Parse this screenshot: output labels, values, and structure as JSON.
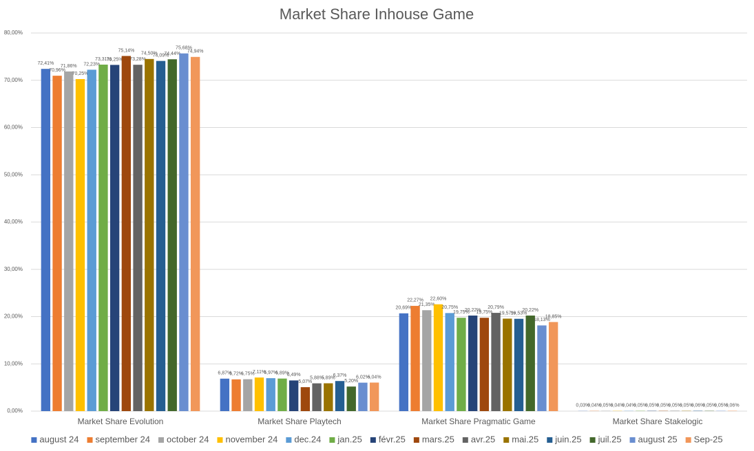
{
  "chart_data": {
    "type": "bar",
    "title": "Market Share Inhouse Game",
    "categories": [
      "Market Share Evolution",
      "Market Share Playtech",
      "Market Share Pragmatic Game",
      "Market Share  Stakelogic"
    ],
    "ylim": [
      0,
      80
    ],
    "yticks": [
      {
        "value": 0,
        "label": "0,00%"
      },
      {
        "value": 10,
        "label": "10,00%"
      },
      {
        "value": 20,
        "label": "20,00%"
      },
      {
        "value": 30,
        "label": "30,00%"
      },
      {
        "value": 40,
        "label": "40,00%"
      },
      {
        "value": 50,
        "label": "50,00%"
      },
      {
        "value": 60,
        "label": "60,00%"
      },
      {
        "value": 70,
        "label": "70,00%"
      },
      {
        "value": 80,
        "label": "80,00%"
      }
    ],
    "grid": true,
    "legend": "bottom",
    "series": [
      {
        "name": "august 24",
        "color": "#4472c4",
        "values": [
          72.41,
          6.87,
          20.69,
          0.03
        ],
        "value_labels": [
          "72,41%",
          "6,87%",
          "20,69%",
          "0,03%"
        ]
      },
      {
        "name": "september 24",
        "color": "#ed7d31",
        "values": [
          70.96,
          6.72,
          22.27,
          0.04
        ],
        "value_labels": [
          "70,96%",
          "6,72%",
          "22,27%",
          "0,04%"
        ]
      },
      {
        "name": "october 24",
        "color": "#a5a5a5",
        "values": [
          71.86,
          6.75,
          21.35,
          0.05
        ],
        "value_labels": [
          "71,86%",
          "6,75%",
          "21,35%",
          "0,05%"
        ]
      },
      {
        "name": "november 24",
        "color": "#ffc000",
        "values": [
          70.25,
          7.11,
          22.6,
          0.04
        ],
        "value_labels": [
          "70,25%",
          "7,11%",
          "22,60%",
          "0,04%"
        ]
      },
      {
        "name": "dec.24",
        "color": "#5b9bd5",
        "values": [
          72.23,
          6.97,
          20.75,
          0.04
        ],
        "value_labels": [
          "72,23%",
          "6,97%",
          "20,75%",
          "0,04%"
        ]
      },
      {
        "name": "jan.25",
        "color": "#70ad47",
        "values": [
          73.31,
          6.89,
          19.75,
          0.05
        ],
        "value_labels": [
          "73,31%",
          "6,89%",
          "19,75%",
          "0,05%"
        ]
      },
      {
        "name": "févr.25",
        "color": "#264478",
        "values": [
          73.25,
          6.49,
          20.22,
          0.05
        ],
        "value_labels": [
          "73,25%",
          "6,49%",
          "20,22%",
          "0,05%"
        ]
      },
      {
        "name": "mars.25",
        "color": "#9e480e",
        "values": [
          75.14,
          5.07,
          19.75,
          0.05
        ],
        "value_labels": [
          "75,14%",
          "5,07%",
          "19,75%",
          "0,05%"
        ]
      },
      {
        "name": "avr.25",
        "color": "#636363",
        "values": [
          73.28,
          5.88,
          20.79,
          0.05
        ],
        "value_labels": [
          "73,28%",
          "5,88%",
          "20,79%",
          "0,05%"
        ]
      },
      {
        "name": "mai.25",
        "color": "#997300",
        "values": [
          74.5,
          5.89,
          19.57,
          0.05
        ],
        "value_labels": [
          "74,50%",
          "5,89%",
          "19,57%",
          "0,05%"
        ]
      },
      {
        "name": "juin.25",
        "color": "#255e91",
        "values": [
          74.09,
          6.37,
          19.53,
          0.06
        ],
        "value_labels": [
          "74,09%",
          "6,37%",
          "19,53%",
          "0,06%"
        ]
      },
      {
        "name": "juil.25",
        "color": "#43682b",
        "values": [
          74.44,
          5.2,
          20.22,
          0.05
        ],
        "value_labels": [
          "74,44%",
          "5,20%",
          "20,22%",
          "0,05%"
        ]
      },
      {
        "name": "august 25",
        "color": "#698ed0",
        "values": [
          75.68,
          6.02,
          18.13,
          0.05
        ],
        "value_labels": [
          "75,68%",
          "6,02%",
          "18,13%",
          "0,05%"
        ]
      },
      {
        "name": "Sep-25",
        "color": "#f1975a",
        "values": [
          74.94,
          6.04,
          18.85,
          0.06
        ],
        "value_labels": [
          "74,94%",
          "6,04%",
          "18,85%",
          "0,06%"
        ]
      }
    ]
  }
}
